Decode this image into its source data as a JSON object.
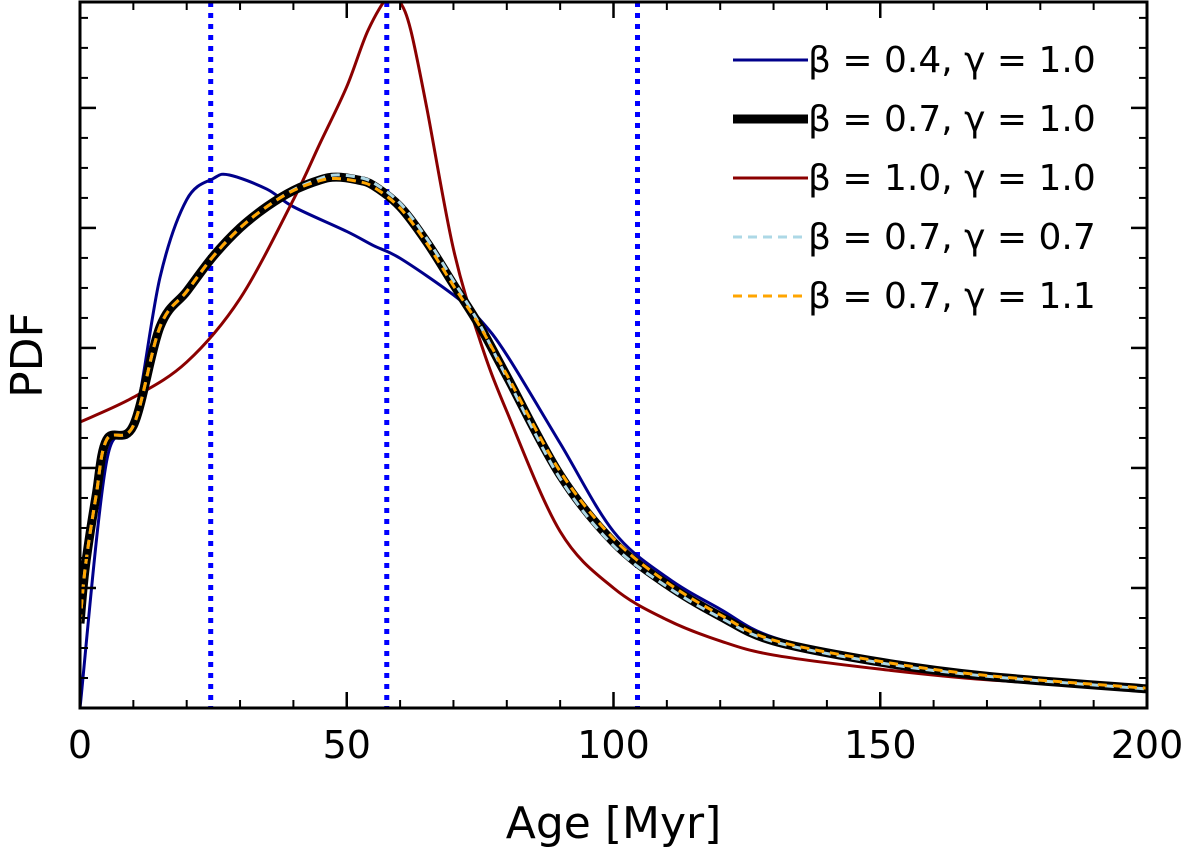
{
  "chart_data": {
    "type": "line",
    "title": "",
    "xlabel": "Age [Myr]",
    "ylabel": "PDF",
    "xlim": [
      0,
      200
    ],
    "ylim": [
      0,
      1.0
    ],
    "y_tick_labels_shown": false,
    "x_ticks": [
      0,
      50,
      100,
      150,
      200
    ],
    "x_tick_labels": [
      "0",
      "50",
      "100",
      "150",
      "200"
    ],
    "y_major_ticks": [
      0.17,
      0.34,
      0.51,
      0.68,
      0.85
    ],
    "legend_position": "top-right",
    "vertical_lines": {
      "color": "#0000ff",
      "style": "dotted",
      "x": [
        24.5,
        57.5,
        104.5
      ]
    },
    "series": [
      {
        "name": "β = 0.4,  γ = 1.0",
        "color": "#00008b",
        "style": "solid",
        "width": "thin",
        "x": [
          0,
          5,
          10,
          15,
          20,
          25,
          28,
          35,
          40,
          50,
          55,
          60,
          70,
          75,
          80,
          90,
          100,
          110,
          120,
          130,
          150,
          170,
          200
        ],
        "y": [
          0.0,
          0.35,
          0.4,
          0.61,
          0.72,
          0.75,
          0.755,
          0.735,
          0.71,
          0.675,
          0.655,
          0.637,
          0.585,
          0.55,
          0.5,
          0.375,
          0.25,
          0.185,
          0.14,
          0.1,
          0.065,
          0.045,
          0.025
        ]
      },
      {
        "name": "β = 0.7,  γ = 1.0",
        "color": "#000000",
        "style": "solid",
        "width": "thick",
        "x": [
          0,
          1,
          3,
          5,
          10,
          15,
          20,
          25,
          30,
          35,
          40,
          45,
          48,
          52,
          55,
          60,
          65,
          70,
          75,
          80,
          90,
          100,
          110,
          120,
          130,
          150,
          170,
          200
        ],
        "y": [
          0.12,
          0.2,
          0.3,
          0.38,
          0.4,
          0.54,
          0.59,
          0.64,
          0.68,
          0.71,
          0.733,
          0.748,
          0.752,
          0.748,
          0.74,
          0.71,
          0.66,
          0.6,
          0.54,
          0.47,
          0.33,
          0.235,
          0.175,
          0.13,
          0.095,
          0.065,
          0.045,
          0.027
        ]
      },
      {
        "name": "β = 1.0,  γ = 1.0",
        "color": "#8b0000",
        "style": "solid",
        "width": "thin",
        "x": [
          0,
          10,
          20,
          30,
          40,
          45,
          50,
          54,
          58,
          60,
          62,
          65,
          70,
          75,
          80,
          90,
          100,
          110,
          120,
          130,
          150,
          170,
          200
        ],
        "y": [
          0.405,
          0.44,
          0.49,
          0.58,
          0.72,
          0.8,
          0.88,
          0.96,
          1.01,
          1.0,
          0.96,
          0.85,
          0.65,
          0.52,
          0.42,
          0.25,
          0.17,
          0.125,
          0.095,
          0.075,
          0.055,
          0.04,
          0.027
        ]
      },
      {
        "name": "β = 0.7,  γ = 0.7",
        "color": "#add8e6",
        "style": "dashed",
        "width": "thin",
        "x": [
          0,
          1,
          3,
          5,
          10,
          15,
          20,
          25,
          30,
          35,
          40,
          45,
          48,
          52,
          55,
          60,
          65,
          70,
          75,
          80,
          90,
          100,
          110,
          120,
          130,
          150,
          170,
          200
        ],
        "y": [
          0.12,
          0.2,
          0.3,
          0.38,
          0.4,
          0.54,
          0.59,
          0.64,
          0.68,
          0.71,
          0.734,
          0.75,
          0.755,
          0.752,
          0.744,
          0.715,
          0.665,
          0.605,
          0.542,
          0.468,
          0.325,
          0.23,
          0.172,
          0.128,
          0.094,
          0.064,
          0.045,
          0.027
        ]
      },
      {
        "name": "β = 0.7,  γ = 1.1",
        "color": "#ffa500",
        "style": "dashed",
        "width": "thin",
        "x": [
          0,
          1,
          3,
          5,
          10,
          15,
          20,
          25,
          30,
          35,
          40,
          45,
          48,
          52,
          55,
          60,
          65,
          70,
          75,
          80,
          90,
          100,
          110,
          120,
          130,
          150,
          170,
          200
        ],
        "y": [
          0.12,
          0.2,
          0.3,
          0.38,
          0.4,
          0.54,
          0.59,
          0.64,
          0.68,
          0.71,
          0.733,
          0.747,
          0.75,
          0.746,
          0.738,
          0.708,
          0.658,
          0.598,
          0.54,
          0.472,
          0.335,
          0.24,
          0.178,
          0.132,
          0.096,
          0.066,
          0.046,
          0.028
        ]
      }
    ]
  }
}
